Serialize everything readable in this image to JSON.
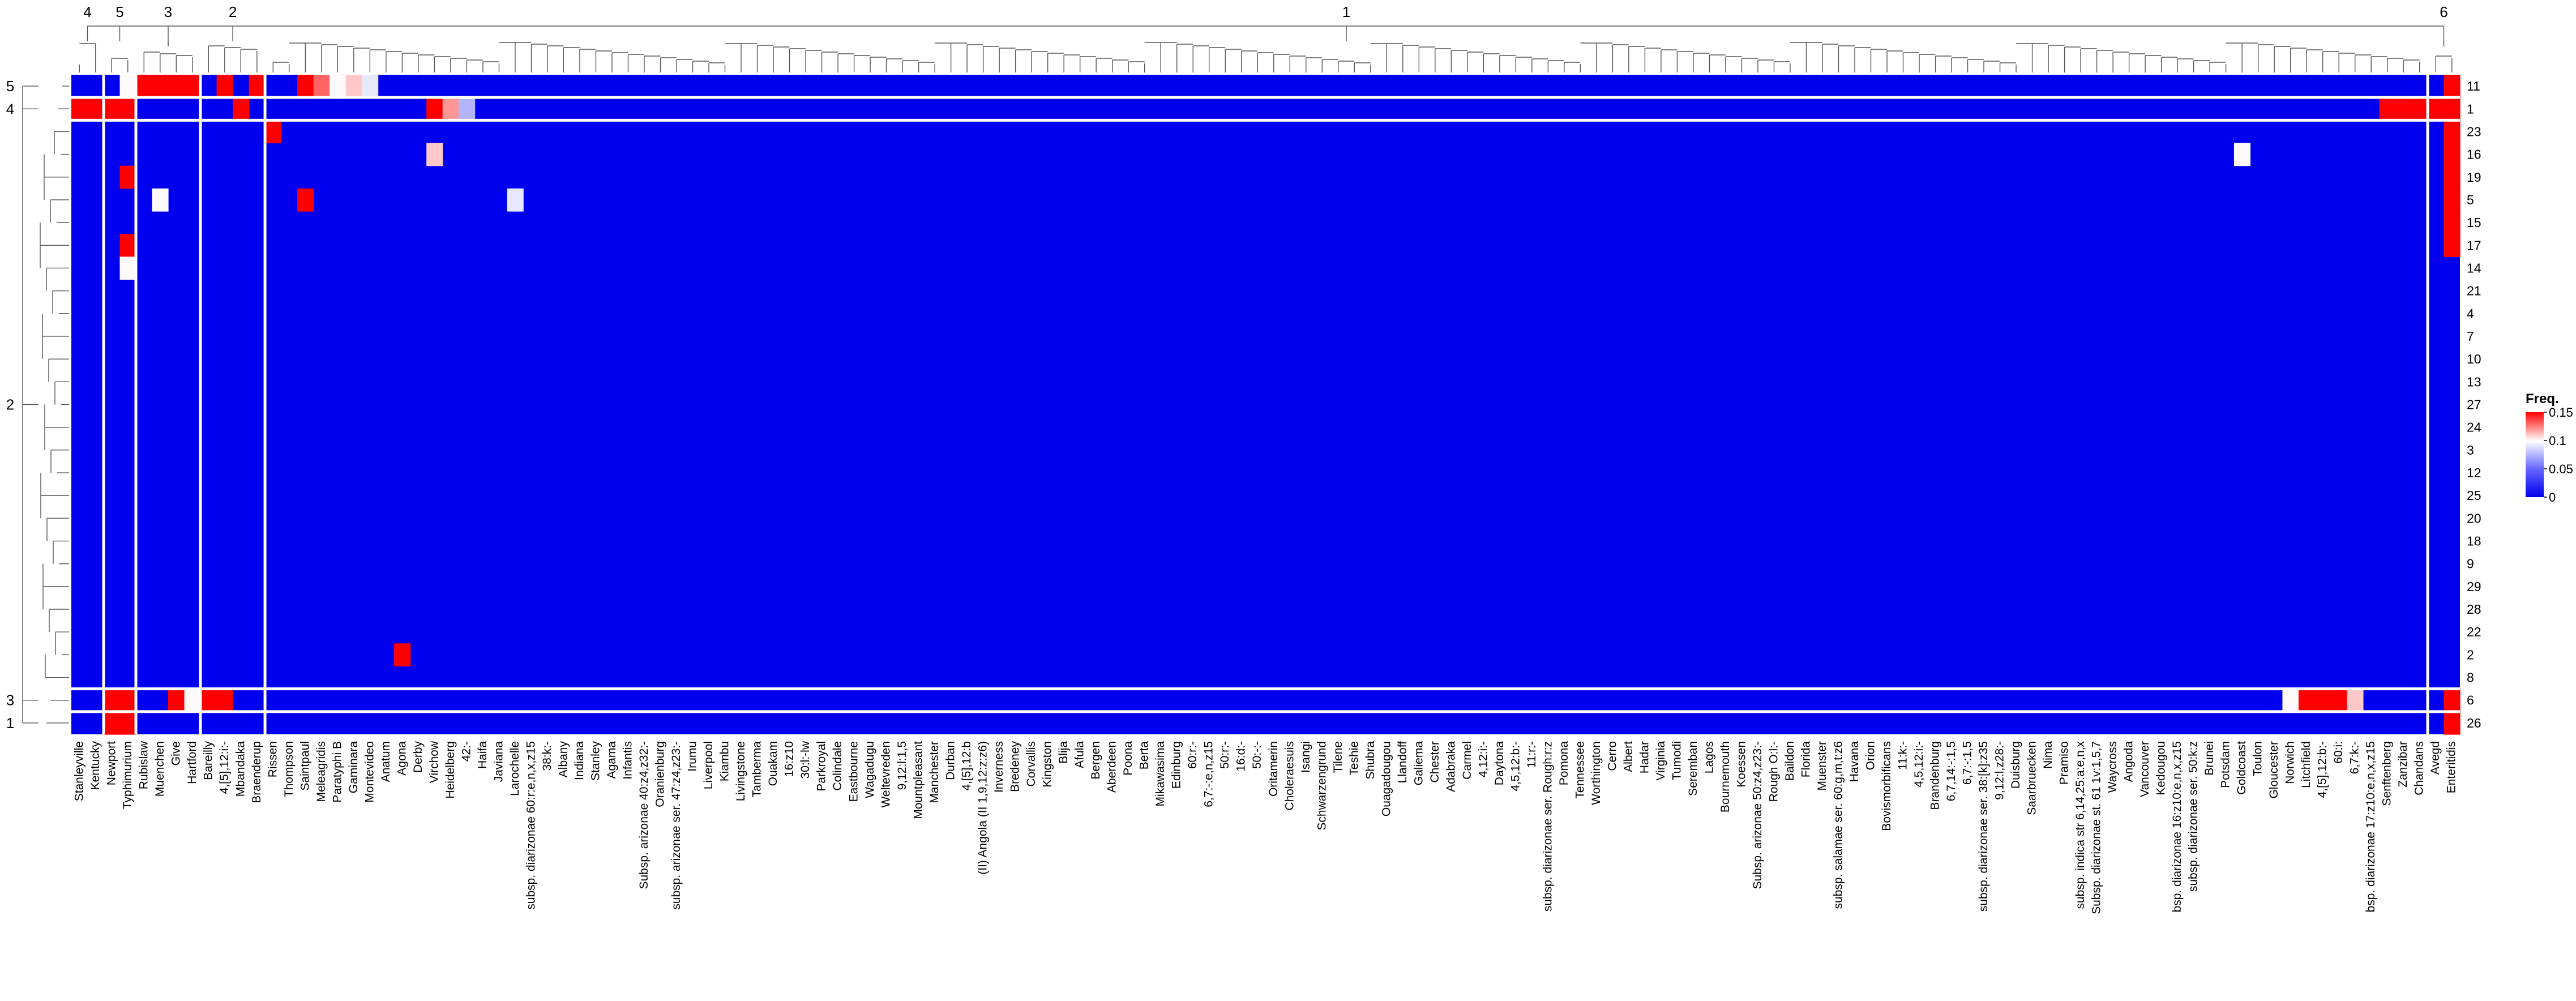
{
  "chart_data": {
    "type": "heatmap",
    "title": "",
    "xlabel": "",
    "ylabel": "",
    "column_clusters": [
      {
        "label": "4",
        "columns": [
          "Stanleyville",
          "Kentucky"
        ]
      },
      {
        "label": "5",
        "columns": [
          "Newport",
          "Typhimurium"
        ]
      },
      {
        "label": "3",
        "columns": [
          "Rubislaw",
          "Muenchen",
          "Give",
          "Hartford"
        ]
      },
      {
        "label": "2",
        "columns": [
          "Bareilly",
          "4,[5],12:i:-",
          "Mbandaka",
          "Braenderup"
        ]
      },
      {
        "label": "1",
        "columns": [
          "Rissen",
          "Thompson",
          "Saintpaul",
          "Meleagridis",
          "Paratyphi B",
          "Gaminara",
          "Montevideo",
          "Anatum",
          "Agona",
          "Derby",
          "Virchow",
          "Heidelberg",
          "42:-",
          "Haifa",
          "Javiana",
          "Larochelle",
          "subsp. diarizonae 60:r:e,n,x,z15",
          "38:k:-",
          "Albany",
          "Indiana",
          "Stanley",
          "Agama",
          "Infantis",
          "Subsp. arizonae 40:z4,z32:-",
          "Oranienburg",
          "subsp. arizonae ser. 47:z4,z23:-",
          "Irumu",
          "Liverpool",
          "Kiambu",
          "Livingstone",
          "Tamberma",
          "Ouakam",
          "16:z10",
          "30:l:-lw",
          "Parkroyal",
          "Colindale",
          "Eastbourne",
          "Wagadugu",
          "Weltevreden",
          "9,12:l:1,5",
          "Mountpleasant",
          "Manchester",
          "Durban",
          "4,[5],12:b",
          "(II) Angola (II 1,9,12:z:z6)",
          "Inverness",
          "Bredeney",
          "Corvallis",
          "Kingston",
          "Blija",
          "Afula",
          "Bergen",
          "Aberdeen",
          "Poona",
          "Berta",
          "Mikawasima",
          "Edinburg",
          "60:r:-",
          "6,7:-:e,n,z15",
          "50:r:-",
          "16:d:-",
          "50:-:-",
          "Oritamerin",
          "Choleraesuis",
          "Isangi",
          "Schwarzengrund",
          "Tilene",
          "Teshie",
          "Shubra",
          "Ouagadougou",
          "Llandoff",
          "Galiema",
          "Chester",
          "Adabraka",
          "Carmel",
          "4,12:i:-",
          "Daytona",
          "4,5,12:b:-",
          "11:r:-",
          "subsp. diarizonae ser. Rough:r:z",
          "Pomona",
          "Tennessee",
          "Worthington",
          "Cerro",
          "Albert",
          "Hadar",
          "Virginia",
          "Tumodi",
          "Seremban",
          "Lagos",
          "Bournemouth",
          "Koessen",
          "Subsp. arizonae 50:z4,z23:-",
          "Rough O:l:-",
          "Baildon",
          "Florida",
          "Muenster",
          "subsp. salamae ser. 60:g,m,t:z6",
          "Havana",
          "Orion",
          "Bovismorbificans",
          "11:k:-",
          "4,5,12:i:-",
          "Brandenburg",
          "6,7,14:-:1,5",
          "6,7:-:1,5",
          "subsp. diarizonae ser. 38:[k]:z35",
          "9,12:l,z28:-",
          "Duisburg",
          "Saarbruecken",
          "Nima",
          "Pramiso",
          "subsp. indica str 6,14,25:a:e,n,x",
          "Subsp. diarizonae st. 61 1v:1,5,7",
          "Waycross",
          "Angoda",
          "Vancouver",
          "Kedougou",
          "bsp. diarizonae 16:z10:e,n,x,z15",
          "subsp. diarizonae ser. 50:k:z",
          "Brunei",
          "Potsdam",
          "Goldcoast",
          "Toulon",
          "Gloucester",
          "Norwich",
          "Litchfield",
          "4,[5],12:b:-",
          "60:i:",
          "6,7:k:-",
          "bsp. diarizonae 17:z10:e,n,x,z15",
          "Senftenberg",
          "Zanzibar",
          "Chandans"
        ]
      },
      {
        "label": "6",
        "columns": [
          "Avegd",
          "Enteritidis"
        ]
      }
    ],
    "row_clusters": [
      {
        "label": "5",
        "rows": [
          "11"
        ]
      },
      {
        "label": "4",
        "rows": [
          "1"
        ]
      },
      {
        "label": "2",
        "rows": [
          "23",
          "16",
          "19",
          "5",
          "15",
          "17",
          "14",
          "21",
          "4",
          "7",
          "10",
          "13",
          "27",
          "24",
          "3",
          "12",
          "25",
          "20",
          "18",
          "9",
          "29",
          "28",
          "22",
          "2",
          "8"
        ]
      },
      {
        "label": "3",
        "rows": [
          "6"
        ]
      },
      {
        "label": "1",
        "rows": [
          "26"
        ]
      }
    ],
    "legend": {
      "title": "Freq.",
      "ticks": [
        "0.15",
        "0.1",
        "0.05",
        "0"
      ],
      "tick_values": [
        0.15,
        0.1,
        0.05,
        0
      ],
      "range": [
        0,
        0.15
      ],
      "colors": [
        "#0000ee",
        "#ffffff",
        "#ff0000"
      ],
      "placement": "right"
    },
    "column_dendrogram": true,
    "row_dendrogram": true,
    "hot_cells": [
      {
        "row": "11",
        "column": "Typhimurium",
        "value": 0.1
      },
      {
        "row": "11",
        "column": "Rubislaw",
        "value": 0.15
      },
      {
        "row": "11",
        "column": "Muenchen",
        "value": 0.15
      },
      {
        "row": "11",
        "column": "Give",
        "value": 0.15
      },
      {
        "row": "11",
        "column": "Hartford",
        "value": 0.15
      },
      {
        "row": "11",
        "column": "4,[5],12:i:-",
        "value": 0.15
      },
      {
        "row": "11",
        "column": "Braenderup",
        "value": 0.15
      },
      {
        "row": "11",
        "column": "Saintpaul",
        "value": 0.15
      },
      {
        "row": "11",
        "column": "Meleagridis",
        "value": 0.13
      },
      {
        "row": "11",
        "column": "Paratyphi B",
        "value": 0.1
      },
      {
        "row": "11",
        "column": "Gaminara",
        "value": 0.11
      },
      {
        "row": "11",
        "column": "Montevideo",
        "value": 0.09
      },
      {
        "row": "11",
        "column": "Enteritidis",
        "value": 0.15
      },
      {
        "row": "1",
        "column": "Stanleyville",
        "value": 0.15
      },
      {
        "row": "1",
        "column": "Kentucky",
        "value": 0.15
      },
      {
        "row": "1",
        "column": "Newport",
        "value": 0.15
      },
      {
        "row": "1",
        "column": "Typhimurium",
        "value": 0.15
      },
      {
        "row": "1",
        "column": "Mbandaka",
        "value": 0.15
      },
      {
        "row": "1",
        "column": "Virchow",
        "value": 0.15
      },
      {
        "row": "1",
        "column": "Heidelberg",
        "value": 0.12
      },
      {
        "row": "1",
        "column": "42:-",
        "value": 0.07
      },
      {
        "row": "1",
        "column": "Senftenberg",
        "value": 0.15
      },
      {
        "row": "1",
        "column": "Zanzibar",
        "value": 0.15
      },
      {
        "row": "1",
        "column": "Chandans",
        "value": 0.15
      },
      {
        "row": "1",
        "column": "Avegd",
        "value": 0.15
      },
      {
        "row": "1",
        "column": "Enteritidis",
        "value": 0.15
      },
      {
        "row": "23",
        "column": "Rissen",
        "value": 0.15
      },
      {
        "row": "23",
        "column": "Enteritidis",
        "value": 0.15
      },
      {
        "row": "16",
        "column": "Virchow",
        "value": 0.11
      },
      {
        "row": "16",
        "column": "Goldcoast",
        "value": 0.1
      },
      {
        "row": "16",
        "column": "Enteritidis",
        "value": 0.15
      },
      {
        "row": "19",
        "column": "Typhimurium",
        "value": 0.15
      },
      {
        "row": "19",
        "column": "Enteritidis",
        "value": 0.15
      },
      {
        "row": "5",
        "column": "Muenchen",
        "value": 0.1
      },
      {
        "row": "5",
        "column": "Saintpaul",
        "value": 0.15
      },
      {
        "row": "5",
        "column": "Larochelle",
        "value": 0.09
      },
      {
        "row": "5",
        "column": "Enteritidis",
        "value": 0.15
      },
      {
        "row": "15",
        "column": "Enteritidis",
        "value": 0.15
      },
      {
        "row": "17",
        "column": "Typhimurium",
        "value": 0.15
      },
      {
        "row": "17",
        "column": "Enteritidis",
        "value": 0.15
      },
      {
        "row": "14",
        "column": "Typhimurium",
        "value": 0.1
      },
      {
        "row": "2",
        "column": "Agona",
        "value": 0.15
      },
      {
        "row": "6",
        "column": "Newport",
        "value": 0.15
      },
      {
        "row": "6",
        "column": "Typhimurium",
        "value": 0.15
      },
      {
        "row": "6",
        "column": "Give",
        "value": 0.15
      },
      {
        "row": "6",
        "column": "Hartford",
        "value": 0.1
      },
      {
        "row": "6",
        "column": "Bareilly",
        "value": 0.15
      },
      {
        "row": "6",
        "column": "4,[5],12:i:-",
        "value": 0.15
      },
      {
        "row": "6",
        "column": "Norwich",
        "value": 0.1
      },
      {
        "row": "6",
        "column": "Litchfield",
        "value": 0.15
      },
      {
        "row": "6",
        "column": "4,[5],12:b:-",
        "value": 0.15
      },
      {
        "row": "6",
        "column": "60:i:",
        "value": 0.15
      },
      {
        "row": "6",
        "column": "6,7:k:-",
        "value": 0.11
      },
      {
        "row": "6",
        "column": "Enteritidis",
        "value": 0.15
      },
      {
        "row": "26",
        "column": "Newport",
        "value": 0.15
      },
      {
        "row": "26",
        "column": "Typhimurium",
        "value": 0.15
      },
      {
        "row": "26",
        "column": "Enteritidis",
        "value": 0.15
      }
    ]
  }
}
